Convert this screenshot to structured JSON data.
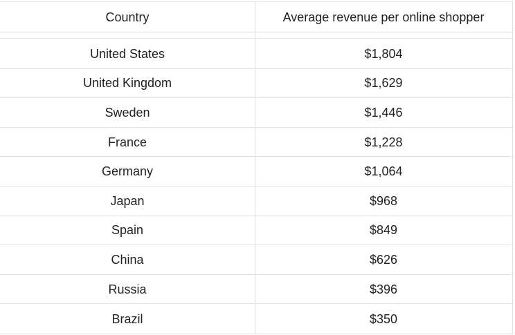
{
  "chart_data": {
    "type": "table",
    "columns": [
      "Country",
      "Average revenue per online shopper"
    ],
    "rows": [
      {
        "country": "United States",
        "value": "$1,804"
      },
      {
        "country": "United Kingdom",
        "value": "$1,629"
      },
      {
        "country": "Sweden",
        "value": "$1,446"
      },
      {
        "country": "France",
        "value": "$1,228"
      },
      {
        "country": "Germany",
        "value": "$1,064"
      },
      {
        "country": "Japan",
        "value": "$968"
      },
      {
        "country": "Spain",
        "value": "$849"
      },
      {
        "country": "China",
        "value": "$626"
      },
      {
        "country": "Russia",
        "value": "$396"
      },
      {
        "country": "Brazil",
        "value": "$350"
      }
    ]
  }
}
